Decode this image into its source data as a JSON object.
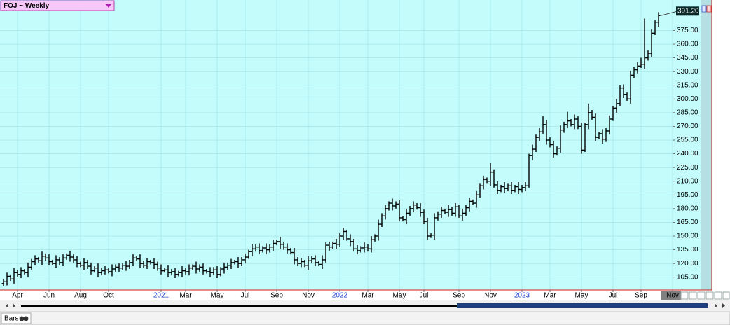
{
  "chart_data": {
    "type": "ohlc",
    "title": "FOJ ~ Weekly",
    "footer_label": "Bars",
    "last_price_label": "391.20",
    "categories": [
      null,
      null,
      null,
      null,
      "Apr",
      null,
      null,
      null,
      null,
      null,
      null,
      null,
      null,
      "Jun",
      null,
      null,
      null,
      null,
      null,
      null,
      null,
      null,
      "Aug",
      null,
      null,
      null,
      null,
      null,
      null,
      null,
      "Oct",
      null,
      null,
      null,
      null,
      null,
      null,
      null,
      null,
      null,
      null,
      null,
      null,
      null,
      null,
      "2021",
      null,
      null,
      null,
      null,
      null,
      null,
      "Mar",
      null,
      null,
      null,
      null,
      null,
      null,
      null,
      null,
      "May",
      null,
      null,
      null,
      null,
      null,
      null,
      null,
      "Jul",
      null,
      null,
      null,
      null,
      null,
      null,
      null,
      null,
      "Sep",
      null,
      null,
      null,
      null,
      null,
      null,
      null,
      null,
      "Nov",
      null,
      null,
      null,
      null,
      null,
      null,
      null,
      null,
      "2022",
      null,
      null,
      null,
      null,
      null,
      null,
      null,
      "Mar",
      null,
      null,
      null,
      null,
      null,
      null,
      null,
      null,
      "May",
      null,
      null,
      null,
      null,
      null,
      null,
      "Jul",
      null,
      null,
      null,
      null,
      null,
      null,
      null,
      null,
      null,
      "Sep",
      null,
      null,
      null,
      null,
      null,
      null,
      null,
      null,
      "Nov",
      null,
      null,
      null,
      null,
      null,
      null,
      null,
      null,
      "2023",
      null,
      null,
      null,
      null,
      null,
      null,
      null,
      "Mar",
      null,
      null,
      null,
      null,
      null,
      null,
      null,
      null,
      "May",
      null,
      null,
      null,
      null,
      null,
      null,
      null,
      null,
      "Jul",
      null,
      null,
      null,
      null,
      null,
      null,
      null,
      "Sep",
      null,
      null,
      null,
      null,
      null,
      null,
      null,
      null,
      "Nov"
    ],
    "open": [
      98,
      100,
      106,
      103,
      110,
      108,
      112,
      110,
      116,
      122,
      125,
      123,
      128,
      126,
      122,
      120,
      124,
      121,
      126,
      129,
      127,
      124,
      120,
      118,
      121,
      117,
      112,
      115,
      110,
      112,
      113,
      111,
      114,
      116,
      115,
      118,
      117,
      121,
      126,
      125,
      120,
      118,
      122,
      121,
      119,
      115,
      112,
      113,
      110,
      111,
      108,
      110,
      112,
      111,
      115,
      117,
      114,
      116,
      112,
      111,
      110,
      113,
      108,
      114,
      116,
      118,
      121,
      122,
      120,
      124,
      127,
      133,
      136,
      138,
      134,
      137,
      135,
      138,
      142,
      144,
      141,
      138,
      135,
      132,
      124,
      120,
      122,
      118,
      123,
      125,
      121,
      119,
      124,
      140,
      138,
      142,
      141,
      150,
      155,
      147,
      144,
      136,
      134,
      137,
      138,
      136,
      146,
      150,
      163,
      172,
      180,
      186,
      183,
      185,
      170,
      168,
      175,
      180,
      184,
      181,
      176,
      166,
      150,
      151,
      170,
      174,
      178,
      176,
      179,
      175,
      182,
      172,
      175,
      181,
      188,
      186,
      195,
      205,
      212,
      210,
      220,
      206,
      200,
      204,
      202,
      205,
      200,
      204,
      201,
      203,
      205,
      238,
      245,
      258,
      264,
      272,
      255,
      250,
      240,
      246,
      266,
      272,
      276,
      272,
      278,
      270,
      244,
      272,
      285,
      280,
      258,
      262,
      256,
      265,
      278,
      290,
      295,
      312,
      305,
      300,
      326,
      332,
      336,
      338,
      345,
      350,
      372,
      384,
      null,
      null,
      null,
      null
    ],
    "high": [
      103,
      110,
      108,
      115,
      113,
      116,
      114,
      121,
      125,
      129,
      127,
      133,
      131,
      130,
      124,
      129,
      127,
      130,
      131,
      134,
      130,
      128,
      122,
      126,
      124,
      121,
      117,
      120,
      115,
      117,
      115,
      119,
      119,
      120,
      120,
      123,
      124,
      130,
      128,
      130,
      123,
      126,
      124,
      126,
      122,
      119,
      115,
      118,
      114,
      115,
      112,
      117,
      115,
      119,
      119,
      122,
      119,
      120,
      114,
      116,
      116,
      117,
      116,
      121,
      121,
      125,
      124,
      127,
      127,
      131,
      135,
      141,
      141,
      142,
      139,
      142,
      141,
      146,
      146,
      149,
      144,
      142,
      137,
      137,
      127,
      126,
      124,
      128,
      128,
      129,
      123,
      129,
      143,
      144,
      144,
      147,
      153,
      159,
      157,
      152,
      147,
      140,
      139,
      143,
      141,
      150,
      152,
      168,
      175,
      184,
      188,
      191,
      188,
      189,
      172,
      180,
      183,
      188,
      186,
      186,
      179,
      170,
      153,
      175,
      177,
      182,
      180,
      184,
      182,
      186,
      184,
      180,
      184,
      192,
      190,
      200,
      208,
      216,
      214,
      230,
      223,
      210,
      206,
      209,
      208,
      209,
      206,
      209,
      206,
      209,
      240,
      250,
      261,
      268,
      281,
      277,
      258,
      254,
      248,
      271,
      275,
      286,
      278,
      283,
      281,
      274,
      274,
      295,
      288,
      284,
      264,
      267,
      268,
      282,
      292,
      300,
      315,
      316,
      307,
      331,
      335,
      340,
      345,
      388,
      353,
      376,
      386,
      395,
      null,
      null,
      null,
      null
    ],
    "low": [
      95,
      96,
      101,
      98,
      105,
      104,
      108,
      105,
      113,
      118,
      121,
      118,
      123,
      118,
      118,
      115,
      118,
      117,
      124,
      122,
      121,
      116,
      116,
      113,
      114,
      108,
      110,
      105,
      107,
      108,
      109,
      106,
      111,
      111,
      113,
      112,
      114,
      117,
      123,
      115,
      115,
      114,
      119,
      114,
      112,
      108,
      110,
      105,
      107,
      104,
      106,
      105,
      108,
      107,
      113,
      109,
      111,
      108,
      109,
      105,
      107,
      104,
      106,
      109,
      113,
      114,
      119,
      115,
      117,
      120,
      125,
      128,
      133,
      130,
      132,
      130,
      132,
      134,
      140,
      136,
      135,
      131,
      130,
      119,
      117,
      116,
      116,
      113,
      120,
      117,
      117,
      114,
      121,
      134,
      136,
      136,
      138,
      146,
      145,
      139,
      133,
      130,
      132,
      132,
      133,
      132,
      144,
      145,
      160,
      168,
      178,
      178,
      180,
      166,
      166,
      163,
      172,
      176,
      179,
      171,
      163,
      146,
      148,
      146,
      167,
      170,
      174,
      171,
      172,
      171,
      170,
      167,
      172,
      177,
      184,
      181,
      192,
      201,
      208,
      205,
      203,
      196,
      198,
      197,
      199,
      196,
      198,
      196,
      198,
      199,
      203,
      233,
      242,
      254,
      262,
      250,
      247,
      236,
      238,
      241,
      263,
      268,
      270,
      267,
      267,
      240,
      242,
      267,
      277,
      254,
      256,
      251,
      253,
      261,
      276,
      285,
      292,
      301,
      298,
      295,
      323,
      328,
      334,
      333,
      342,
      346,
      370,
      379,
      null,
      null,
      null,
      null
    ],
    "close": [
      100,
      106,
      103,
      110,
      108,
      112,
      110,
      116,
      122,
      125,
      123,
      128,
      126,
      122,
      120,
      124,
      121,
      126,
      129,
      127,
      124,
      120,
      118,
      121,
      117,
      112,
      115,
      110,
      112,
      113,
      111,
      114,
      116,
      115,
      118,
      117,
      121,
      126,
      125,
      120,
      118,
      122,
      121,
      119,
      115,
      112,
      113,
      110,
      111,
      108,
      110,
      112,
      111,
      115,
      117,
      114,
      116,
      112,
      111,
      110,
      113,
      108,
      114,
      116,
      118,
      121,
      122,
      120,
      124,
      127,
      133,
      136,
      138,
      134,
      137,
      135,
      138,
      142,
      144,
      141,
      138,
      135,
      132,
      124,
      120,
      122,
      118,
      123,
      125,
      121,
      119,
      124,
      140,
      138,
      142,
      141,
      150,
      155,
      147,
      144,
      136,
      134,
      137,
      138,
      136,
      146,
      150,
      163,
      172,
      180,
      186,
      183,
      185,
      170,
      168,
      175,
      180,
      184,
      181,
      176,
      166,
      150,
      151,
      170,
      174,
      178,
      176,
      179,
      175,
      182,
      172,
      175,
      181,
      188,
      186,
      195,
      205,
      212,
      210,
      220,
      206,
      200,
      204,
      202,
      205,
      200,
      204,
      201,
      203,
      205,
      238,
      245,
      258,
      264,
      272,
      255,
      250,
      240,
      246,
      266,
      272,
      276,
      272,
      278,
      270,
      244,
      272,
      285,
      280,
      258,
      262,
      256,
      265,
      278,
      290,
      295,
      312,
      305,
      300,
      326,
      332,
      336,
      338,
      345,
      350,
      372,
      384,
      391.2,
      null,
      null,
      null,
      null
    ],
    "color": "#000000",
    "background": "#c4fcfc",
    "grid": true,
    "ylim": [
      91,
      406
    ],
    "yticks": [
      {
        "value": 105,
        "label": "105.00"
      },
      {
        "value": 120,
        "label": "120.00"
      },
      {
        "value": 135,
        "label": "135.00"
      },
      {
        "value": 150,
        "label": "150.00"
      },
      {
        "value": 165,
        "label": "165.00"
      },
      {
        "value": 180,
        "label": "180.00"
      },
      {
        "value": 195,
        "label": "195.00"
      },
      {
        "value": 210,
        "label": "210.00"
      },
      {
        "value": 225,
        "label": "225.00"
      },
      {
        "value": 240,
        "label": "240.00"
      },
      {
        "value": 255,
        "label": "255.00"
      },
      {
        "value": 270,
        "label": "270.00"
      },
      {
        "value": 285,
        "label": "285.00"
      },
      {
        "value": 300,
        "label": "300.00"
      },
      {
        "value": 315,
        "label": "315.00"
      },
      {
        "value": 330,
        "label": "330.00"
      },
      {
        "value": 345,
        "label": "345.00"
      },
      {
        "value": 360,
        "label": "360.00"
      },
      {
        "value": 375,
        "label": "375.00"
      }
    ]
  }
}
